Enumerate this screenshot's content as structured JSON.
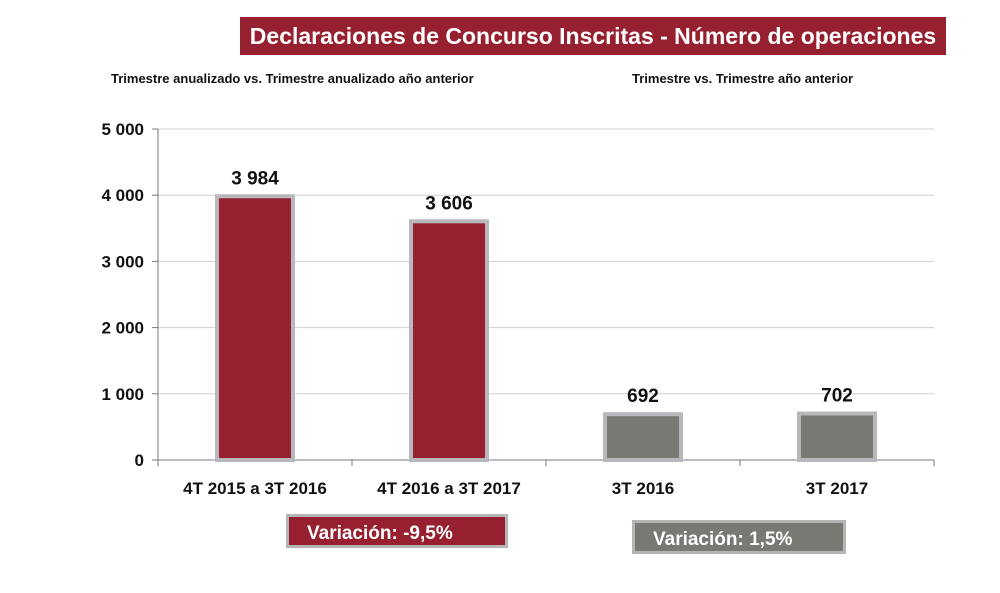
{
  "header": {
    "title": "Declaraciones de Concurso Inscritas - Número de operaciones",
    "subtitle_left": "Trimestre anualizado vs. Trimestre anualizado año anterior",
    "subtitle_right": "Trimestre vs. Trimestre año anterior"
  },
  "variations": {
    "left_label": "Variación:  -9,5%",
    "right_label": "Variación: 1,5%",
    "left_color": "#96202f",
    "right_color": "#767a73"
  },
  "chart_data": {
    "type": "bar",
    "title": "Declaraciones de Concurso Inscritas - Número de operaciones",
    "xlabel": "",
    "ylabel": "",
    "ylim": [
      0,
      5000
    ],
    "yticks": [
      0,
      1000,
      2000,
      3000,
      4000,
      5000
    ],
    "ytick_labels": [
      "0",
      "1 000",
      "2 000",
      "3 000",
      "4 000",
      "5 000"
    ],
    "grid": true,
    "categories": [
      "4T 2015 a 3T 2016",
      "4T 2016 a 3T 2017",
      "3T 2016",
      "3T 2017"
    ],
    "values": [
      3984,
      3606,
      692,
      702
    ],
    "value_labels": [
      "3 984",
      "3 606",
      "692",
      "702"
    ],
    "bar_colors": [
      "#96202f",
      "#96202f",
      "#767a73",
      "#767a73"
    ]
  }
}
